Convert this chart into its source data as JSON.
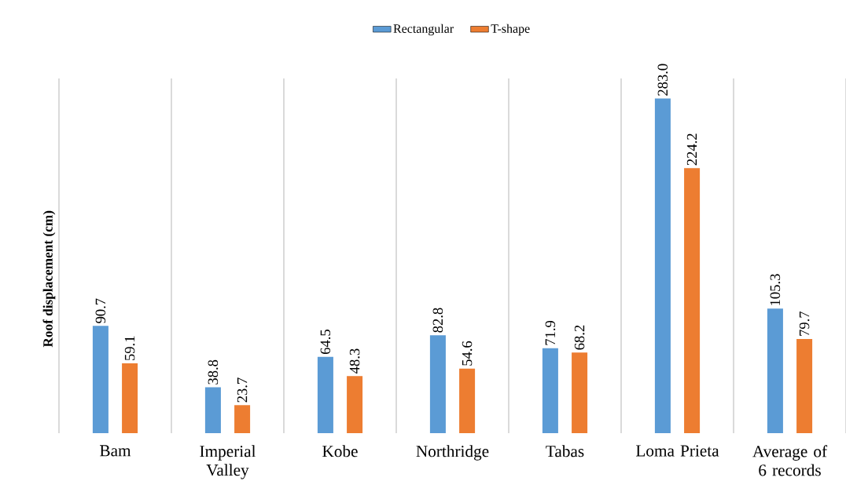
{
  "chart_data": {
    "type": "bar",
    "ylabel": "Roof displacement (cm)",
    "categories": [
      "Bam",
      "Imperial Valley",
      "Kobe",
      "Northridge",
      "Tabas",
      "Loma Prieta",
      "Average of 6 records"
    ],
    "series": [
      {
        "name": "Rectangular",
        "color": "#5b9bd5",
        "values": [
          90.7,
          38.8,
          64.5,
          82.8,
          71.9,
          283.0,
          105.3
        ],
        "value_labels": [
          "90.7",
          "38.8",
          "64.5",
          "82.8",
          "71.9",
          "283.0",
          "105.3"
        ]
      },
      {
        "name": "T-shape",
        "color": "#ed7d31",
        "values": [
          59.1,
          23.7,
          48.3,
          54.6,
          68.2,
          224.2,
          79.7
        ],
        "value_labels": [
          "59.1",
          "23.7",
          "48.3",
          "54.6",
          "68.2",
          "224.2",
          "79.7"
        ]
      }
    ],
    "ylim": [
      0,
      300
    ],
    "tick_labels": "x",
    "grid": "x",
    "legend": "top"
  }
}
